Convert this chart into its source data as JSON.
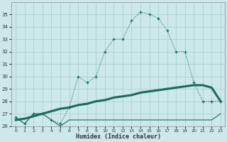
{
  "xlabel": "Humidex (Indice chaleur)",
  "x": [
    0,
    1,
    2,
    3,
    4,
    5,
    6,
    7,
    8,
    9,
    10,
    11,
    12,
    13,
    14,
    15,
    16,
    17,
    18,
    19,
    20,
    21,
    22,
    23
  ],
  "line1": [
    26.7,
    26.2,
    27.0,
    27.0,
    26.5,
    26.2,
    27.5,
    30.0,
    29.5,
    30.0,
    32.0,
    33.0,
    33.0,
    34.5,
    35.2,
    35.0,
    34.7,
    33.7,
    32.0,
    32.0,
    29.5,
    28.0,
    28.0,
    28.0
  ],
  "line2": [
    26.7,
    26.2,
    27.0,
    27.0,
    26.5,
    26.0,
    26.5,
    26.5,
    26.5,
    26.5,
    26.5,
    26.5,
    26.5,
    26.5,
    26.5,
    26.5,
    26.5,
    26.5,
    26.5,
    26.5,
    26.5,
    26.5,
    26.5,
    27.0
  ],
  "line3": [
    26.5,
    26.6,
    26.8,
    27.0,
    27.2,
    27.4,
    27.5,
    27.7,
    27.8,
    28.0,
    28.1,
    28.3,
    28.4,
    28.5,
    28.7,
    28.8,
    28.9,
    29.0,
    29.1,
    29.2,
    29.3,
    29.3,
    29.1,
    28.0
  ],
  "bg_color": "#cce8e8",
  "grid_color": "#aacccc",
  "line_color": "#1a6b5a",
  "ylim": [
    26,
    36
  ],
  "yticks": [
    26,
    27,
    28,
    29,
    30,
    31,
    32,
    33,
    34,
    35
  ],
  "xticks": [
    0,
    1,
    2,
    3,
    4,
    5,
    6,
    7,
    8,
    9,
    10,
    11,
    12,
    13,
    14,
    15,
    16,
    17,
    18,
    19,
    20,
    21,
    22,
    23
  ]
}
